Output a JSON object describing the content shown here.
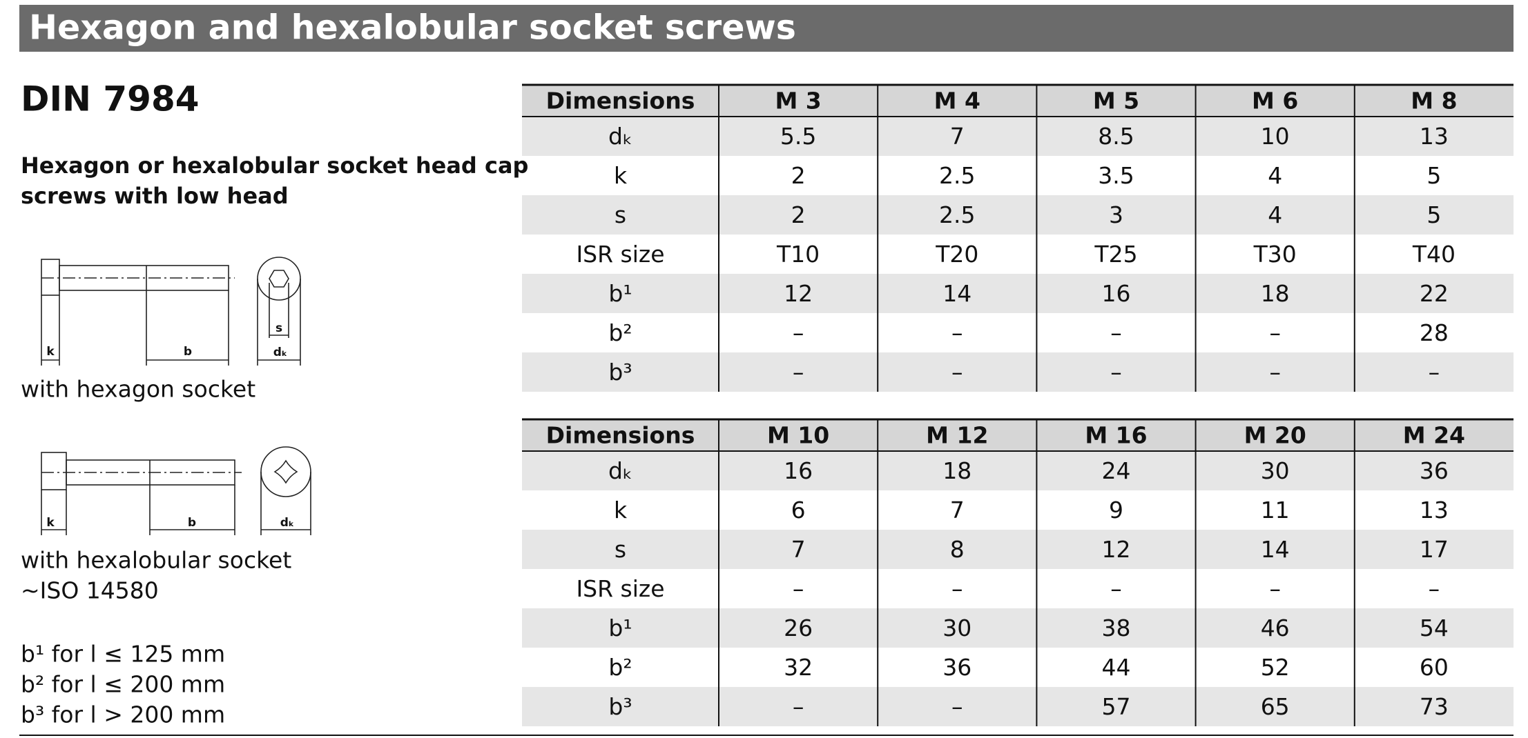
{
  "header": {
    "title": "Hexagon and hexalobular socket screws"
  },
  "standard": "DIN 7984",
  "description": [
    "Hexagon or hexalobular socket head cap",
    "screws with low head"
  ],
  "figures": [
    {
      "labels": [
        "k",
        "b",
        "s",
        "dₖ"
      ],
      "caption": [
        "with hexagon socket"
      ]
    },
    {
      "labels": [
        "k",
        "b",
        "dₖ"
      ],
      "caption": [
        "with hexalobular socket",
        "~ISO 14580"
      ]
    }
  ],
  "notes": [
    "b¹ for l ≤ 125 mm",
    "b² for l ≤ 200 mm",
    "b³ for l > 200 mm"
  ],
  "tables": [
    {
      "header": [
        "Dimensions",
        "M 3",
        "M 4",
        "M 5",
        "M 6",
        "M 8"
      ],
      "rows": [
        [
          "dₖ",
          "5.5",
          "7",
          "8.5",
          "10",
          "13"
        ],
        [
          "k",
          "2",
          "2.5",
          "3.5",
          "4",
          "5"
        ],
        [
          "s",
          "2",
          "2.5",
          "3",
          "4",
          "5"
        ],
        [
          "ISR size",
          "T10",
          "T20",
          "T25",
          "T30",
          "T40"
        ],
        [
          "b¹",
          "12",
          "14",
          "16",
          "18",
          "22"
        ],
        [
          "b²",
          "–",
          "–",
          "–",
          "–",
          "28"
        ],
        [
          "b³",
          "–",
          "–",
          "–",
          "–",
          "–"
        ]
      ]
    },
    {
      "header": [
        "Dimensions",
        "M 10",
        "M 12",
        "M 16",
        "M 20",
        "M 24"
      ],
      "rows": [
        [
          "dₖ",
          "16",
          "18",
          "24",
          "30",
          "36"
        ],
        [
          "k",
          "6",
          "7",
          "9",
          "11",
          "13"
        ],
        [
          "s",
          "7",
          "8",
          "12",
          "14",
          "17"
        ],
        [
          "ISR size",
          "–",
          "–",
          "–",
          "–",
          "–"
        ],
        [
          "b¹",
          "26",
          "30",
          "38",
          "46",
          "54"
        ],
        [
          "b²",
          "32",
          "36",
          "44",
          "52",
          "60"
        ],
        [
          "b³",
          "–",
          "–",
          "57",
          "65",
          "73"
        ]
      ]
    }
  ]
}
